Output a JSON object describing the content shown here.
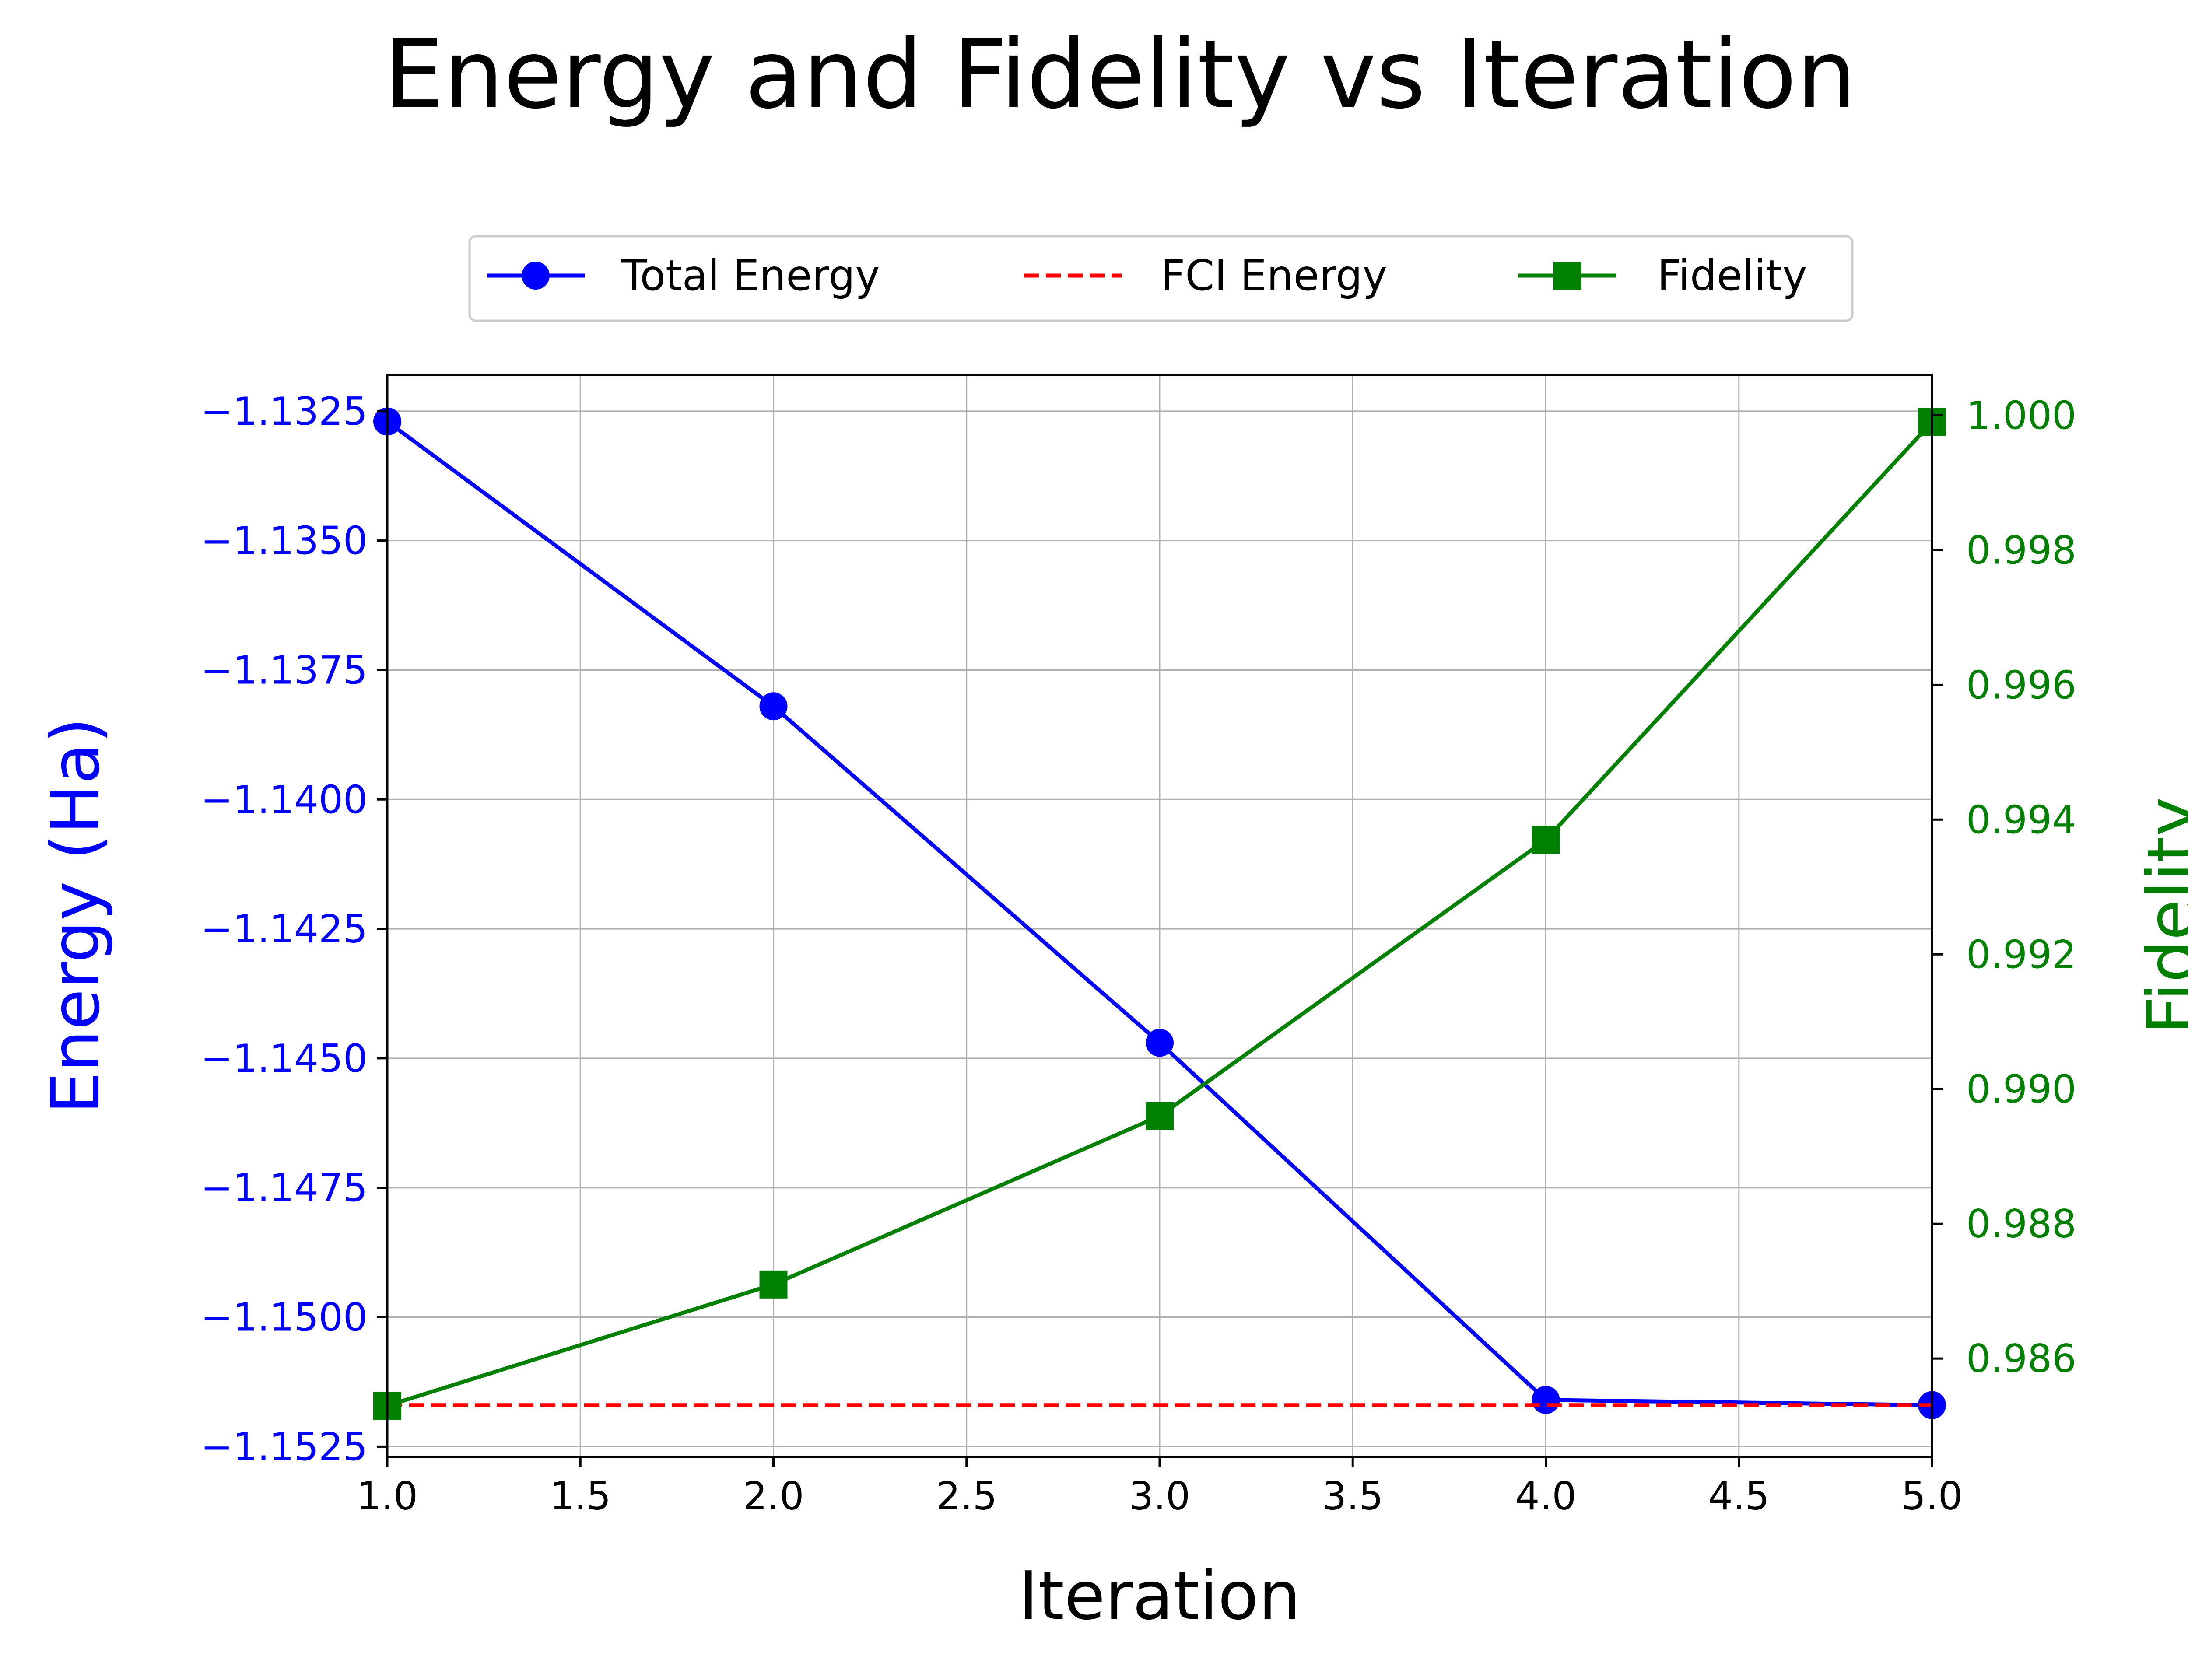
{
  "chart_data": {
    "type": "line",
    "title": "Energy and Fidelity vs Iteration",
    "xlabel": "Iteration",
    "ylabel": "Energy (Ha)",
    "y2label": "Fidelity",
    "xlim": [
      1.0,
      5.0
    ],
    "ylim": [
      -1.1527,
      -1.1318
    ],
    "y2lim": [
      0.98454,
      1.0006
    ],
    "grid": true,
    "legend_position": "top-center",
    "x_ticks": [
      "1.0",
      "1.5",
      "2.0",
      "2.5",
      "3.0",
      "3.5",
      "4.0",
      "4.5",
      "5.0"
    ],
    "y_ticks": [
      "−1.1325",
      "−1.1350",
      "−1.1375",
      "−1.1400",
      "−1.1425",
      "−1.1450",
      "−1.1475",
      "−1.1500",
      "−1.1525"
    ],
    "y2_ticks": [
      "0.986",
      "0.988",
      "0.990",
      "0.992",
      "0.994",
      "0.996",
      "0.998",
      "1.000"
    ],
    "x": [
      1,
      2,
      3,
      4,
      5
    ],
    "series": [
      {
        "name": "Total Energy",
        "axis": "left",
        "values": [
          -1.1327,
          -1.1382,
          -1.1447,
          -1.1516,
          -1.1517
        ],
        "color": "#0000ff",
        "marker": "circle",
        "linestyle": "solid"
      },
      {
        "name": "FCI Energy",
        "axis": "left",
        "values": [
          -1.1517,
          -1.1517,
          -1.1517,
          -1.1517,
          -1.1517
        ],
        "color": "#ff0000",
        "marker": "none",
        "linestyle": "dashed"
      },
      {
        "name": "Fidelity",
        "axis": "right",
        "values": [
          0.9853,
          0.9871,
          0.9896,
          0.9937,
          0.9999
        ],
        "color": "#008000",
        "marker": "square",
        "linestyle": "solid"
      }
    ],
    "left_axis_color": "#0000ff",
    "right_axis_color": "#008000"
  }
}
